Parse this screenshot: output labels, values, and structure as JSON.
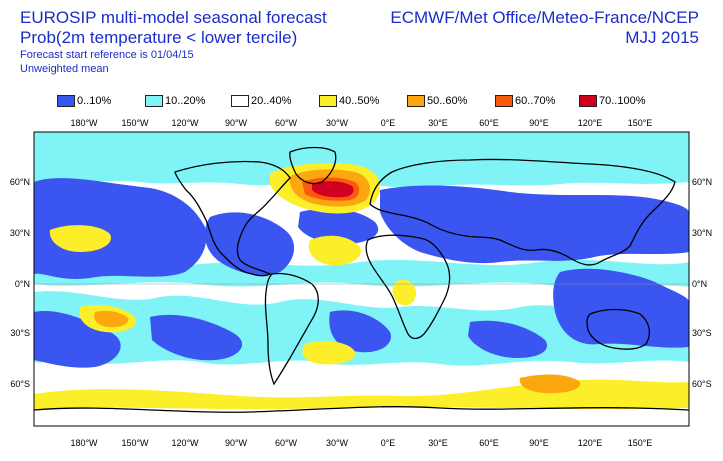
{
  "title": {
    "line1": "EUROSIP multi-model seasonal forecast",
    "line2": "Prob(2m temperature < lower tercile)",
    "line3": "Forecast start reference is 01/04/15",
    "line4": "Unweighted mean"
  },
  "source": {
    "line1": "ECMWF/Met Office/Meteo-France/NCEP",
    "line2": "MJJ 2015"
  },
  "legend": [
    {
      "label": "0..10%",
      "color": "#3a55f0"
    },
    {
      "label": "10..20%",
      "color": "#80f3f6"
    },
    {
      "label": "20..40%",
      "color": "#ffffff"
    },
    {
      "label": "40..50%",
      "color": "#fdee2a"
    },
    {
      "label": "50..60%",
      "color": "#fca70f"
    },
    {
      "label": "60..70%",
      "color": "#fb5a0c"
    },
    {
      "label": "70..100%",
      "color": "#cf0020"
    }
  ],
  "axes": {
    "lon_labels": [
      "180°W",
      "150°W",
      "120°W",
      "90°W",
      "60°W",
      "30°W",
      "0°E",
      "30°E",
      "60°E",
      "90°E",
      "120°E",
      "150°E"
    ],
    "lat_labels": [
      "60°N",
      "30°N",
      "0°N",
      "30°S",
      "60°S"
    ]
  }
}
